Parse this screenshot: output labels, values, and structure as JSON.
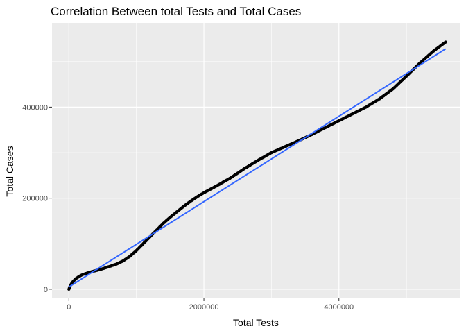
{
  "chart_data": {
    "type": "scatter",
    "title": "Correlation Between total Tests and Total Cases",
    "xlabel": "Total Tests",
    "ylabel": "Total Cases",
    "xlim": [
      -250000,
      5800000
    ],
    "ylim": [
      -20000,
      585000
    ],
    "x_ticks": [
      0,
      2000000,
      4000000
    ],
    "x_tick_labels": [
      "0",
      "2000000",
      "4000000"
    ],
    "y_ticks": [
      0,
      200000,
      400000
    ],
    "y_tick_labels": [
      "0",
      "200000",
      "400000"
    ],
    "grid": true,
    "colors": {
      "panel": "#ebebeb",
      "grid": "#ffffff",
      "points": "#000000",
      "trend": "#3366ff"
    },
    "series": [
      {
        "kind": "points",
        "x": [
          0,
          20000,
          50000,
          100000,
          150000,
          200000,
          300000,
          400000,
          500000,
          600000,
          700000,
          800000,
          900000,
          1000000,
          1100000,
          1200000,
          1300000,
          1400000,
          1500000,
          1600000,
          1700000,
          1800000,
          1900000,
          2000000,
          2200000,
          2400000,
          2600000,
          2800000,
          3000000,
          3200000,
          3400000,
          3600000,
          3800000,
          4000000,
          4200000,
          4400000,
          4600000,
          4800000,
          5000000,
          5200000,
          5400000,
          5580000
        ],
        "y": [
          0,
          8000,
          15000,
          23000,
          28000,
          32000,
          37000,
          41000,
          45000,
          50000,
          55000,
          62000,
          72000,
          85000,
          100000,
          115000,
          130000,
          145000,
          158000,
          170000,
          182000,
          193000,
          203000,
          212000,
          228000,
          245000,
          265000,
          283000,
          300000,
          313000,
          326000,
          340000,
          355000,
          370000,
          385000,
          400000,
          418000,
          440000,
          468000,
          497000,
          523000,
          543000
        ]
      },
      {
        "kind": "trend",
        "x": [
          0,
          5580000
        ],
        "y": [
          5000,
          528000
        ]
      }
    ]
  }
}
